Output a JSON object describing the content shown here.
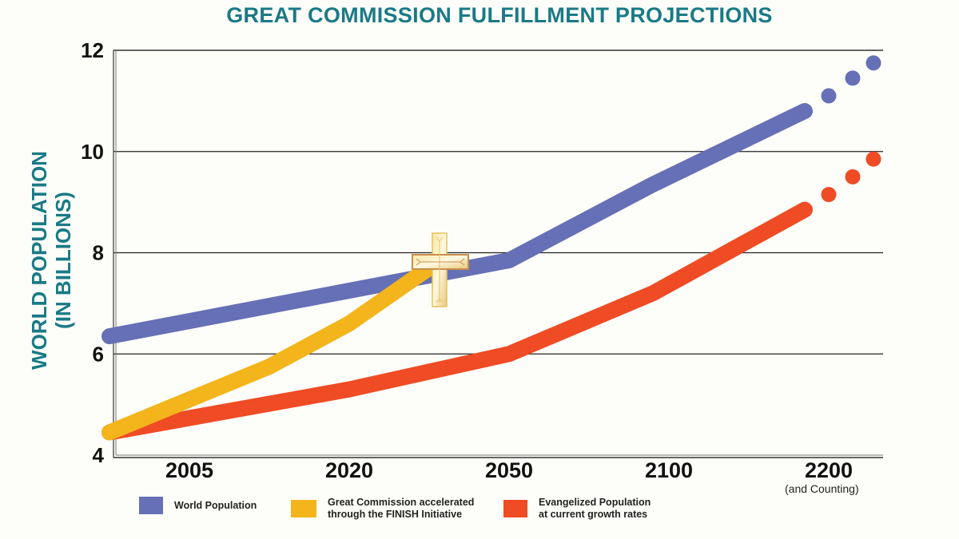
{
  "chart_data": {
    "type": "line",
    "title": "GREAT COMMISSION FULFILLMENT PROJECTIONS",
    "ylabel_line1": "WORLD POPULATION",
    "ylabel_line2": "(IN BILLIONS)",
    "xlabel": "",
    "ylim": [
      4,
      12
    ],
    "yticks": [
      4,
      6,
      8,
      10,
      12
    ],
    "ytick_labels": [
      "4",
      "6",
      "8",
      "10",
      "12"
    ],
    "categories": [
      "2005",
      "2020",
      "2050",
      "2100",
      "2200"
    ],
    "x_note": "(and Counting)",
    "grid": true,
    "series": [
      {
        "name": "World Population",
        "color": "#6670b6",
        "points": [
          [
            -0.5,
            6.35
          ],
          [
            2.0,
            7.85
          ],
          [
            2.9,
            9.35
          ],
          [
            3.85,
            10.8
          ]
        ],
        "projection_dots": [
          [
            4.0,
            11.1
          ],
          [
            4.15,
            11.45
          ],
          [
            4.28,
            11.75
          ]
        ]
      },
      {
        "name": "Great Commission accelerated through the FINISH Initiative",
        "color": "#f3b51b",
        "points": [
          [
            -0.5,
            4.45
          ],
          [
            0.5,
            5.75
          ],
          [
            1.0,
            6.6
          ],
          [
            1.5,
            7.7
          ]
        ],
        "projection_dots": []
      },
      {
        "name": "Evangelized Population at current growth rates",
        "color": "#ef4b24",
        "points": [
          [
            -0.5,
            4.45
          ],
          [
            1.0,
            5.3
          ],
          [
            2.0,
            6.0
          ],
          [
            2.9,
            7.2
          ],
          [
            3.85,
            8.85
          ]
        ],
        "projection_dots": [
          [
            4.0,
            9.15
          ],
          [
            4.15,
            9.5
          ],
          [
            4.28,
            9.85
          ]
        ]
      }
    ],
    "annotation": "cross-icon at convergence of Great Commission and World Population lines",
    "legend_position": "bottom"
  },
  "legend": [
    {
      "label": "World Population",
      "color": "#6670b6"
    },
    {
      "label": "Great Commission accelerated\nthrough the FINISH Initiative",
      "color": "#f3b51b"
    },
    {
      "label": "Evangelized Population\nat current growth rates",
      "color": "#ef4b24"
    }
  ]
}
